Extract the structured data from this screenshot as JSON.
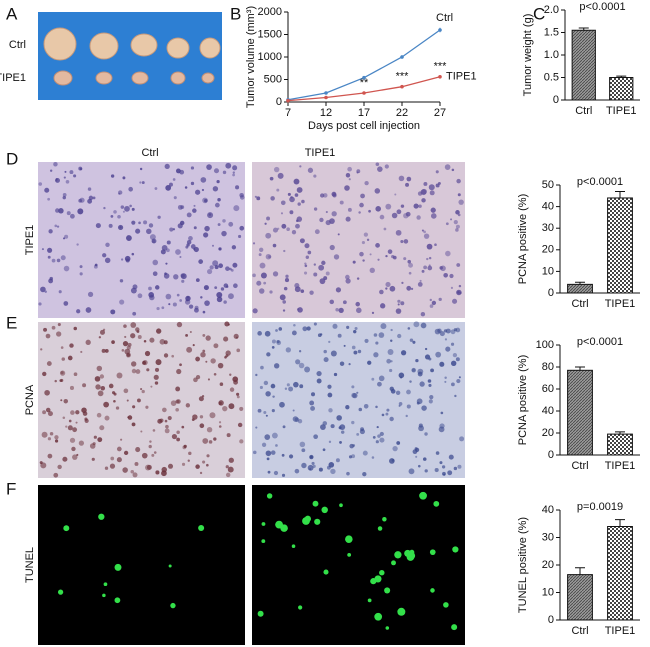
{
  "panels": [
    "A",
    "B",
    "C",
    "D",
    "E",
    "F"
  ],
  "photo_labels": [
    "Ctrl",
    "TIPE1"
  ],
  "column_headers": [
    "Ctrl",
    "TIPE1"
  ],
  "row_labels": [
    "TIPE1",
    "PCNA",
    "TUNEL"
  ],
  "chart_data": [
    {
      "type": "line",
      "xlabel": "Days post cell injection",
      "ylabel": "Tumor volume (mm³)",
      "x": [
        7,
        12,
        17,
        22,
        27
      ],
      "xlim": [
        7,
        27
      ],
      "xticks": [
        7,
        12,
        17,
        22,
        27
      ],
      "ylim": [
        0,
        2000
      ],
      "yticks": [
        0,
        500,
        1000,
        1500,
        2000
      ],
      "series": [
        {
          "name": "Ctrl",
          "color": "#4a86c5",
          "values": [
            50,
            200,
            540,
            1000,
            1600
          ],
          "errors": [
            5,
            15,
            25,
            40,
            50
          ]
        },
        {
          "name": "TIPE1",
          "color": "#d0554f",
          "values": [
            30,
            100,
            200,
            340,
            560
          ],
          "errors": [
            3,
            8,
            15,
            20,
            25
          ]
        }
      ],
      "annotations": [
        {
          "text": "**",
          "x": 17
        },
        {
          "text": "***",
          "x": 22
        },
        {
          "text": "***",
          "x": 27
        }
      ]
    },
    {
      "type": "bar",
      "ylabel": "Tumor weight (g)",
      "annotation": "p<0.0001",
      "categories": [
        "Ctrl",
        "TIPE1"
      ],
      "values": [
        1.55,
        0.5
      ],
      "errors": [
        0.05,
        0.03
      ],
      "ylim": [
        0,
        2
      ],
      "yticks": [
        0,
        0.5,
        {
          "value": 1,
          "label": "1.0"
        },
        1.5,
        {
          "value": 2,
          "label": "2.0"
        }
      ]
    },
    {
      "type": "bar",
      "ylabel": "PCNA positive (%)",
      "annotation": "p<0.0001",
      "categories": [
        "Ctrl",
        "TIPE1"
      ],
      "values": [
        4,
        44
      ],
      "errors": [
        1,
        3
      ],
      "ylim": [
        0,
        50
      ],
      "yticks": [
        0,
        10,
        20,
        30,
        40,
        50
      ]
    },
    {
      "type": "bar",
      "ylabel": "PCNA positive (%)",
      "annotation": "p<0.0001",
      "categories": [
        "Ctrl",
        "TIPE1"
      ],
      "values": [
        77,
        19
      ],
      "errors": [
        3,
        2
      ],
      "ylim": [
        0,
        100
      ],
      "yticks": [
        0,
        20,
        40,
        60,
        80,
        100
      ]
    },
    {
      "type": "bar",
      "ylabel": "TUNEL positive (%)",
      "annotation": "p=0.0019",
      "categories": [
        "Ctrl",
        "TIPE1"
      ],
      "values": [
        16.5,
        34
      ],
      "errors": [
        2.5,
        2.5
      ],
      "ylim": [
        0,
        40
      ],
      "yticks": [
        0,
        10,
        20,
        30,
        40
      ]
    }
  ]
}
